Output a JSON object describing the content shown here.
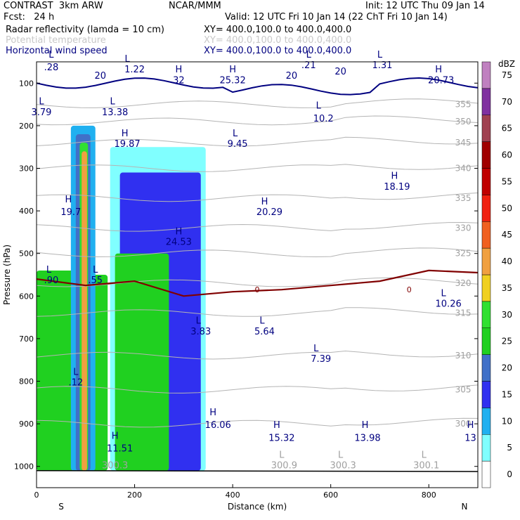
{
  "header": {
    "model": "CONTRAST  3km ARW",
    "org": "NCAR/MMM",
    "init": "Init: 12 UTC Thu 09 Jan 14",
    "fcst": "Fcst:   24 h",
    "valid": "Valid: 12 UTC Fri 10 Jan 14 (22 ChT Fri 10 Jan 14)",
    "fields": [
      {
        "name": "Radar reflectivity (lamda = 10 cm)",
        "xy": "XY= 400.0,100.0 to 400.0,400.0",
        "color": "#000000"
      },
      {
        "name": "Potential temperature",
        "xy": "XY= 400.0,100.0 to 400.0,400.0",
        "color": "#c8c8c8"
      },
      {
        "name": "Horizontal wind speed",
        "xy": "XY= 400.0,100.0 to 400.0,400.0",
        "color": "#000080"
      }
    ]
  },
  "chart_data": {
    "type": "heatmap",
    "title": "",
    "xlabel": "Distance (km)",
    "ylabel": "Pressure (hPa)",
    "xlim": [
      0,
      900
    ],
    "ylim": [
      1050,
      50
    ],
    "x_ticks": [
      0,
      200,
      400,
      600,
      800
    ],
    "y_ticks": [
      100,
      200,
      300,
      400,
      500,
      600,
      700,
      800,
      900,
      1000
    ],
    "x_end_labels": [
      "S",
      "N"
    ],
    "colorbar": {
      "unit": "dBZ",
      "levels": [
        0,
        5,
        10,
        15,
        20,
        25,
        30,
        35,
        40,
        45,
        50,
        55,
        60,
        65,
        70,
        75
      ],
      "colors": [
        "#ffffff",
        "#80ffff",
        "#20b0f0",
        "#3030f0",
        "#4070c8",
        "#20d020",
        "#30e030",
        "#f0d020",
        "#f0a040",
        "#f06020",
        "#f02010",
        "#c00000",
        "#a00000",
        "#a04050",
        "#8030a0",
        "#c080c0"
      ]
    },
    "reflectivity_columns": [
      {
        "x0": 0,
        "x1": 80,
        "p_top": 540,
        "p_bottom": 1010,
        "dbz": 25
      },
      {
        "x0": 55,
        "x1": 145,
        "p_top": 550,
        "p_bottom": 1010,
        "dbz": 25
      },
      {
        "x0": 70,
        "x1": 120,
        "p_top": 200,
        "p_bottom": 1010,
        "dbz": 10
      },
      {
        "x0": 80,
        "x1": 110,
        "p_top": 220,
        "p_bottom": 1010,
        "dbz": 20
      },
      {
        "x0": 88,
        "x1": 105,
        "p_top": 240,
        "p_bottom": 1010,
        "dbz": 30
      },
      {
        "x0": 92,
        "x1": 103,
        "p_top": 260,
        "p_bottom": 1010,
        "dbz": 40
      },
      {
        "x0": 150,
        "x1": 345,
        "p_top": 250,
        "p_bottom": 1010,
        "dbz": 5
      },
      {
        "x0": 170,
        "x1": 335,
        "p_top": 310,
        "p_bottom": 1010,
        "dbz": 15
      },
      {
        "x0": 160,
        "x1": 270,
        "p_top": 500,
        "p_bottom": 1010,
        "dbz": 25
      }
    ],
    "theta_contours": [
      {
        "label": "355",
        "p": 150
      },
      {
        "label": "350",
        "p": 190
      },
      {
        "label": "345",
        "p": 240
      },
      {
        "label": "340",
        "p": 300
      },
      {
        "label": "335",
        "p": 370
      },
      {
        "label": "330",
        "p": 440
      },
      {
        "label": "325",
        "p": 500
      },
      {
        "label": "320",
        "p": 570
      },
      {
        "label": "315",
        "p": 640
      },
      {
        "label": "310",
        "p": 740
      },
      {
        "label": "305",
        "p": 820
      },
      {
        "label": "300",
        "p": 900
      }
    ],
    "freezing_level": {
      "label": "0",
      "points": [
        [
          0,
          560
        ],
        [
          100,
          575
        ],
        [
          200,
          565
        ],
        [
          300,
          600
        ],
        [
          400,
          590
        ],
        [
          500,
          585
        ],
        [
          600,
          575
        ],
        [
          700,
          565
        ],
        [
          800,
          540
        ],
        [
          900,
          545
        ]
      ]
    },
    "annotations": [
      {
        "text": "L",
        "x": 30,
        "p": 40
      },
      {
        "text": ".28",
        "x": 30,
        "p": 70
      },
      {
        "text": "20",
        "x": 130,
        "p": 90
      },
      {
        "text": "L",
        "x": 185,
        "p": 50
      },
      {
        "text": "1.22",
        "x": 200,
        "p": 75
      },
      {
        "text": "H",
        "x": 290,
        "p": 75
      },
      {
        "text": "32",
        "x": 290,
        "p": 100
      },
      {
        "text": "H",
        "x": 400,
        "p": 75
      },
      {
        "text": "25.32",
        "x": 400,
        "p": 100
      },
      {
        "text": "20",
        "x": 520,
        "p": 90
      },
      {
        "text": "L",
        "x": 555,
        "p": 40
      },
      {
        "text": ".21",
        "x": 555,
        "p": 65
      },
      {
        "text": "20",
        "x": 620,
        "p": 80
      },
      {
        "text": "L",
        "x": 700,
        "p": 40
      },
      {
        "text": "1.31",
        "x": 705,
        "p": 65
      },
      {
        "text": "H",
        "x": 820,
        "p": 75
      },
      {
        "text": "20.73",
        "x": 825,
        "p": 100
      },
      {
        "text": "L",
        "x": 10,
        "p": 150
      },
      {
        "text": "3.79",
        "x": 10,
        "p": 175
      },
      {
        "text": "L",
        "x": 155,
        "p": 150
      },
      {
        "text": "13.38",
        "x": 160,
        "p": 175
      },
      {
        "text": "L",
        "x": 575,
        "p": 160
      },
      {
        "text": "10.2",
        "x": 585,
        "p": 190
      },
      {
        "text": "H",
        "x": 180,
        "p": 225
      },
      {
        "text": "19.87",
        "x": 185,
        "p": 250
      },
      {
        "text": "L",
        "x": 405,
        "p": 225
      },
      {
        "text": "9.45",
        "x": 410,
        "p": 250
      },
      {
        "text": "H",
        "x": 730,
        "p": 325
      },
      {
        "text": "18.19",
        "x": 735,
        "p": 350
      },
      {
        "text": "H",
        "x": 65,
        "p": 380
      },
      {
        "text": "19.7",
        "x": 70,
        "p": 410
      },
      {
        "text": "H",
        "x": 465,
        "p": 385
      },
      {
        "text": "20.29",
        "x": 475,
        "p": 410
      },
      {
        "text": "H",
        "x": 290,
        "p": 455
      },
      {
        "text": "24.53",
        "x": 290,
        "p": 480
      },
      {
        "text": "L",
        "x": 25,
        "p": 545
      },
      {
        "text": ".90",
        "x": 30,
        "p": 570
      },
      {
        "text": "L",
        "x": 120,
        "p": 545
      },
      {
        "text": ".55",
        "x": 120,
        "p": 570
      },
      {
        "text": "L",
        "x": 830,
        "p": 600
      },
      {
        "text": "10.26",
        "x": 840,
        "p": 625
      },
      {
        "text": "L",
        "x": 330,
        "p": 665
      },
      {
        "text": "3.83",
        "x": 335,
        "p": 690
      },
      {
        "text": "L",
        "x": 460,
        "p": 665
      },
      {
        "text": "5.64",
        "x": 465,
        "p": 690
      },
      {
        "text": "L",
        "x": 570,
        "p": 730
      },
      {
        "text": "7.39",
        "x": 580,
        "p": 755
      },
      {
        "text": "L",
        "x": 80,
        "p": 785
      },
      {
        "text": ".12",
        "x": 80,
        "p": 810
      },
      {
        "text": "H",
        "x": 360,
        "p": 880
      },
      {
        "text": "16.06",
        "x": 370,
        "p": 910
      },
      {
        "text": "H",
        "x": 490,
        "p": 910
      },
      {
        "text": "15.32",
        "x": 500,
        "p": 940
      },
      {
        "text": "H",
        "x": 670,
        "p": 910
      },
      {
        "text": "13.98",
        "x": 675,
        "p": 940
      },
      {
        "text": "H",
        "x": 885,
        "p": 910
      },
      {
        "text": "13",
        "x": 885,
        "p": 940
      },
      {
        "text": "H",
        "x": 160,
        "p": 935
      },
      {
        "text": "11.51",
        "x": 170,
        "p": 965
      },
      {
        "text": "L",
        "x": 500,
        "p": 980
      },
      {
        "text": "300.9",
        "x": 505,
        "p": 1005
      },
      {
        "text": "L",
        "x": 620,
        "p": 980
      },
      {
        "text": "300.3",
        "x": 625,
        "p": 1005
      },
      {
        "text": "L",
        "x": 790,
        "p": 980
      },
      {
        "text": "300.1",
        "x": 795,
        "p": 1005
      },
      {
        "text": "300.3",
        "x": 160,
        "p": 1005
      }
    ]
  }
}
